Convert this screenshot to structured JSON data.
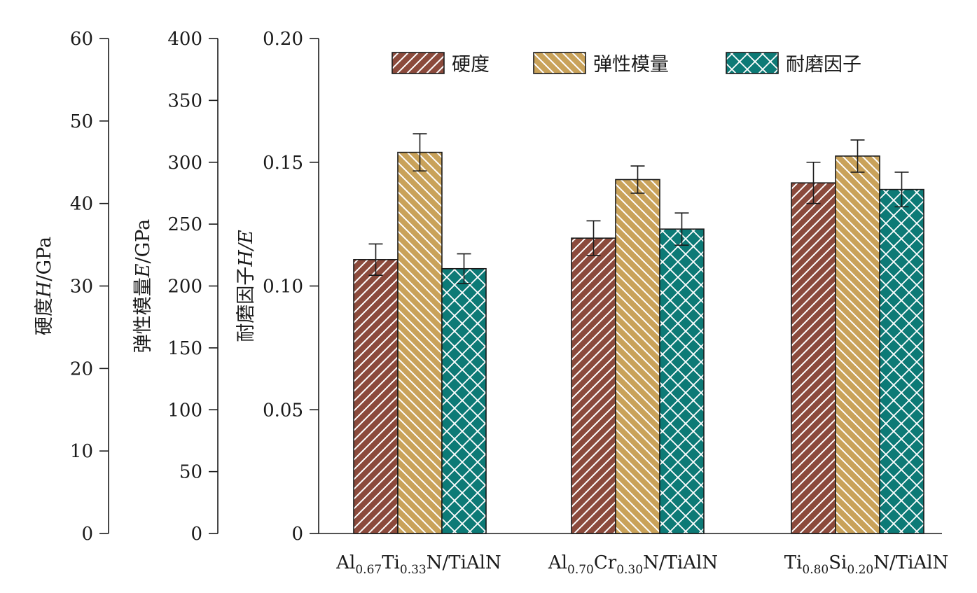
{
  "chart_data": {
    "type": "bar",
    "categories": [
      {
        "parts": [
          [
            "Al",
            ""
          ],
          [
            "0.67",
            "sub"
          ],
          [
            "Ti",
            ""
          ],
          [
            "0.33",
            "sub"
          ],
          [
            "N/TiAlN",
            ""
          ]
        ]
      },
      {
        "parts": [
          [
            "Al",
            ""
          ],
          [
            "0.70",
            "sub"
          ],
          [
            "Cr",
            ""
          ],
          [
            "0.30",
            "sub"
          ],
          [
            "N/TiAlN",
            ""
          ]
        ]
      },
      {
        "parts": [
          [
            "Ti",
            ""
          ],
          [
            "0.80",
            "sub"
          ],
          [
            "Si",
            ""
          ],
          [
            "0.20",
            "sub"
          ],
          [
            "N/TiAlN",
            ""
          ]
        ]
      }
    ],
    "axes": [
      {
        "id": "hardness",
        "title_prefix": "硬度",
        "title_var": "H",
        "title_suffix": "/GPa",
        "min": 0,
        "max": 60,
        "ticks": [
          "0",
          "10",
          "20",
          "30",
          "40",
          "50",
          "60"
        ]
      },
      {
        "id": "modulus",
        "title_prefix": "弹性模量",
        "title_var": "E",
        "title_suffix": "/GPa",
        "min": 0,
        "max": 400,
        "ticks": [
          "0",
          "50",
          "100",
          "150",
          "200",
          "250",
          "300",
          "350",
          "400"
        ]
      },
      {
        "id": "ratio",
        "title_prefix": "耐磨因子",
        "title_var": "H/E",
        "title_suffix": "",
        "min": 0,
        "max": 0.2,
        "ticks": [
          "0",
          "0.05",
          "0.10",
          "0.15",
          "0.20"
        ]
      }
    ],
    "series": [
      {
        "name": "硬度",
        "axis": "hardness",
        "color": "#8b4a3c",
        "pattern": "hatch-right",
        "values": [
          33.2,
          35.8,
          42.5
        ],
        "errors": [
          1.9,
          2.1,
          2.5
        ]
      },
      {
        "name": "弹性模量",
        "axis": "modulus",
        "color": "#c9a25a",
        "pattern": "hatch-left",
        "values": [
          308,
          286,
          305
        ],
        "errors": [
          15,
          11,
          13
        ]
      },
      {
        "name": "耐磨因子",
        "axis": "ratio",
        "color": "#0d7a76",
        "pattern": "crosshatch",
        "values": [
          0.107,
          0.123,
          0.139
        ],
        "errors": [
          0.006,
          0.0065,
          0.007
        ]
      }
    ],
    "legend_position": "top-right",
    "grid": false
  }
}
